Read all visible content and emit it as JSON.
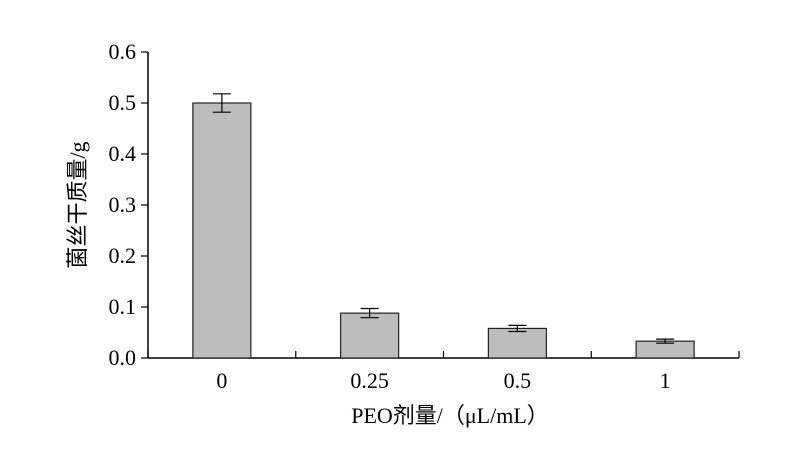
{
  "chart_data": {
    "type": "bar",
    "title": "",
    "xlabel": "PEO剂量/（μL/mL）",
    "ylabel": "菌丝干质量/g",
    "categories": [
      "0",
      "0.25",
      "0.5",
      "1"
    ],
    "values": [
      0.5,
      0.088,
      0.058,
      0.033
    ],
    "errors": [
      0.018,
      0.009,
      0.006,
      0.004
    ],
    "ylim": [
      0,
      0.6
    ],
    "yticks": [
      "0.0",
      "0.1",
      "0.2",
      "0.3",
      "0.4",
      "0.5",
      "0.6"
    ],
    "grid": false,
    "legend": "none",
    "colors": {
      "bar_fill": "#bdbdbd",
      "bar_stroke": "#222222",
      "axis": "#000000"
    }
  }
}
